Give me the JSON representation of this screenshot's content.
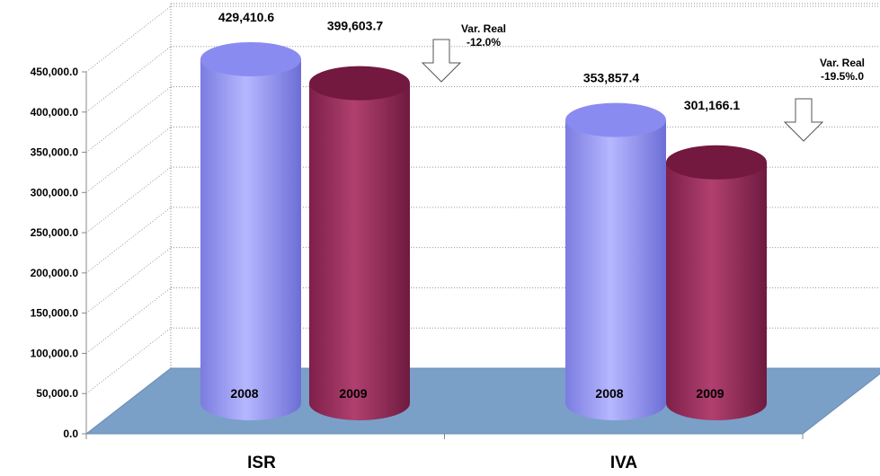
{
  "chart_data": {
    "type": "bar",
    "categories": [
      "ISR",
      "IVA"
    ],
    "series": [
      {
        "name": "2008",
        "values": [
          429410.6,
          353857.4
        ]
      },
      {
        "name": "2009",
        "values": [
          399603.7,
          301166.1
        ]
      }
    ],
    "value_labels": {
      "ISR": [
        "429,410.6",
        "399,603.7"
      ],
      "IVA": [
        "353,857.4",
        "301,166.1"
      ]
    },
    "variations": [
      {
        "category": "ISR",
        "label": "Var. Real",
        "value": "-12.0%"
      },
      {
        "category": "IVA",
        "label": "Var. Real",
        "value": "-19.5%.0"
      }
    ],
    "y_ticks": [
      "0.0",
      "50,000.0",
      "100,000.0",
      "150,000.0",
      "200,000.0",
      "250,000.0",
      "300,000.0",
      "350,000.0",
      "400,000.0",
      "450,000.0"
    ],
    "ylim": [
      0,
      450000
    ],
    "grid": true,
    "legend": "none",
    "colors": {
      "2008": "#9b9cf7",
      "2009": "#a0305f",
      "floor": "#7aa0c8"
    }
  }
}
